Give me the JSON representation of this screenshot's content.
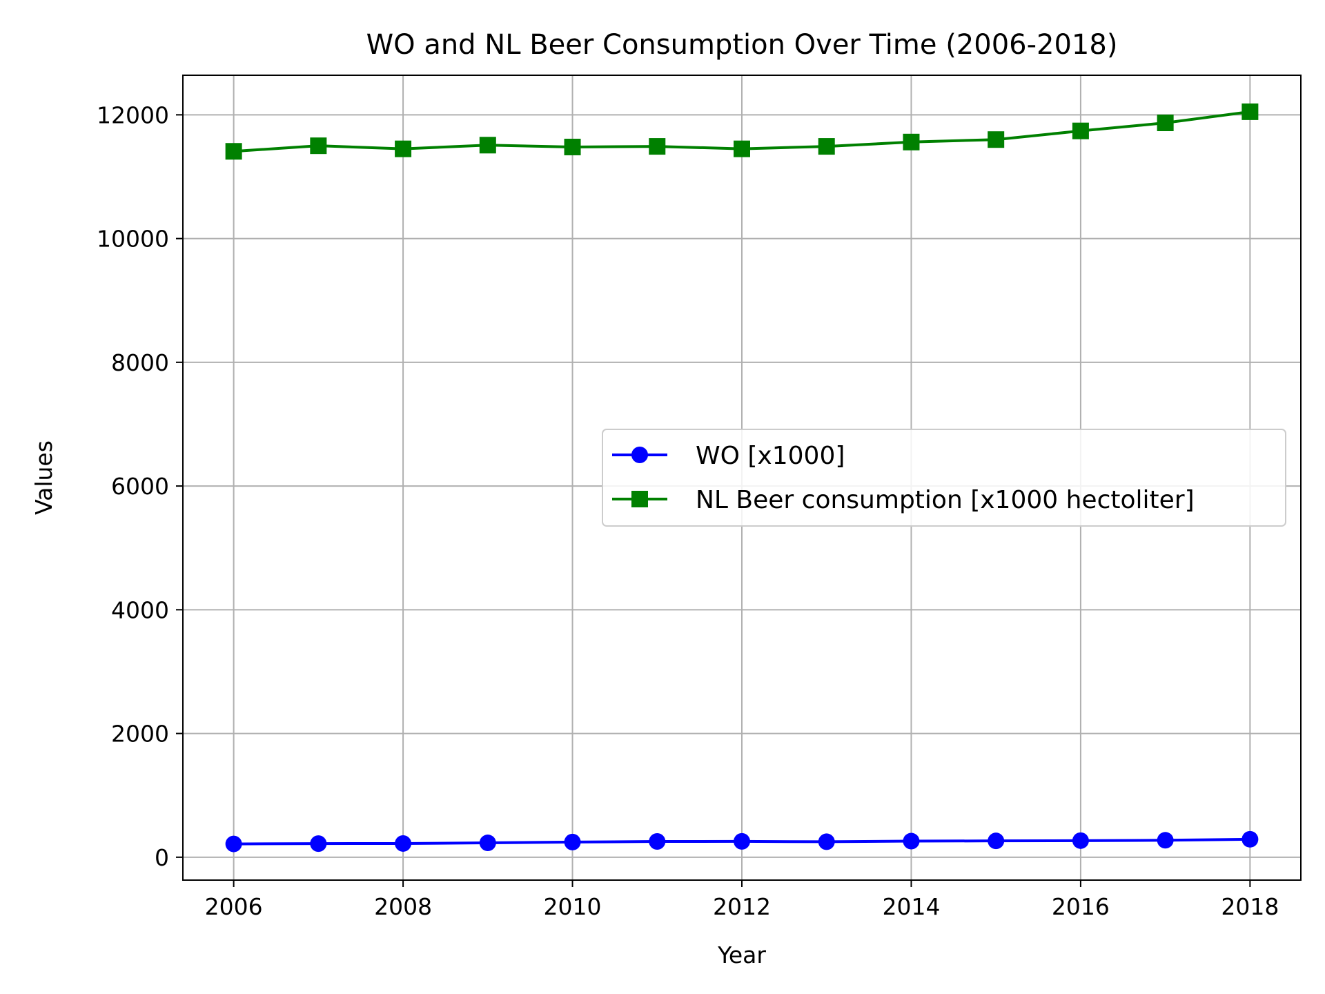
{
  "chart_data": {
    "type": "line",
    "title": "WO and NL Beer Consumption Over Time (2006-2018)",
    "xlabel": "Year",
    "ylabel": "Values",
    "x": [
      2006,
      2007,
      2008,
      2009,
      2010,
      2011,
      2012,
      2013,
      2014,
      2015,
      2016,
      2017,
      2018
    ],
    "xticks": [
      "2006",
      "2008",
      "2010",
      "2012",
      "2014",
      "2016",
      "2018"
    ],
    "yticks": [
      "0",
      "2000",
      "4000",
      "6000",
      "8000",
      "10000",
      "12000"
    ],
    "xlim": [
      2005.4,
      2018.6
    ],
    "ylim": [
      -370,
      12640
    ],
    "grid": true,
    "legend_position": "center-right",
    "series": [
      {
        "name": "WO [x1000]",
        "color": "#0000ff",
        "marker": "circle",
        "values": [
          215,
          220,
          222,
          232,
          245,
          255,
          256,
          250,
          260,
          264,
          268,
          274,
          290
        ]
      },
      {
        "name": "NL Beer consumption [x1000 hectoliter]",
        "color": "#008000",
        "marker": "square",
        "values": [
          11410,
          11500,
          11450,
          11510,
          11480,
          11490,
          11450,
          11490,
          11560,
          11600,
          11740,
          11870,
          12050
        ]
      }
    ]
  }
}
